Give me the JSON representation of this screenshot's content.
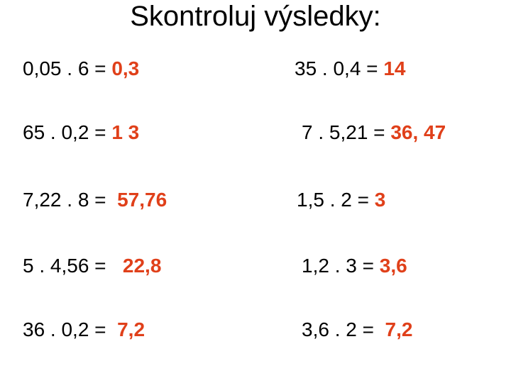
{
  "title": "Skontroluj výsledky:",
  "items": [
    {
      "expression": "0,05 . 6 =",
      "answer": "0,3"
    },
    {
      "expression": "35 . 0,4 =",
      "answer": "14"
    },
    {
      "expression": "65 . 0,2 =",
      "answer": "1 3"
    },
    {
      "expression": "7 . 5,21 =",
      "answer": "36, 47"
    },
    {
      "expression": "7,22 . 8 =",
      "answer": "57,76"
    },
    {
      "expression": "1,5 . 2 =",
      "answer": "3"
    },
    {
      "expression": "5 . 4,56 =",
      "answer": "22,8"
    },
    {
      "expression": "1,2 . 3 =",
      "answer": "3,6"
    },
    {
      "expression": "36 . 0,2 =",
      "answer": "7,2"
    },
    {
      "expression": "3,6 . 2 =",
      "answer": "7,2"
    }
  ]
}
